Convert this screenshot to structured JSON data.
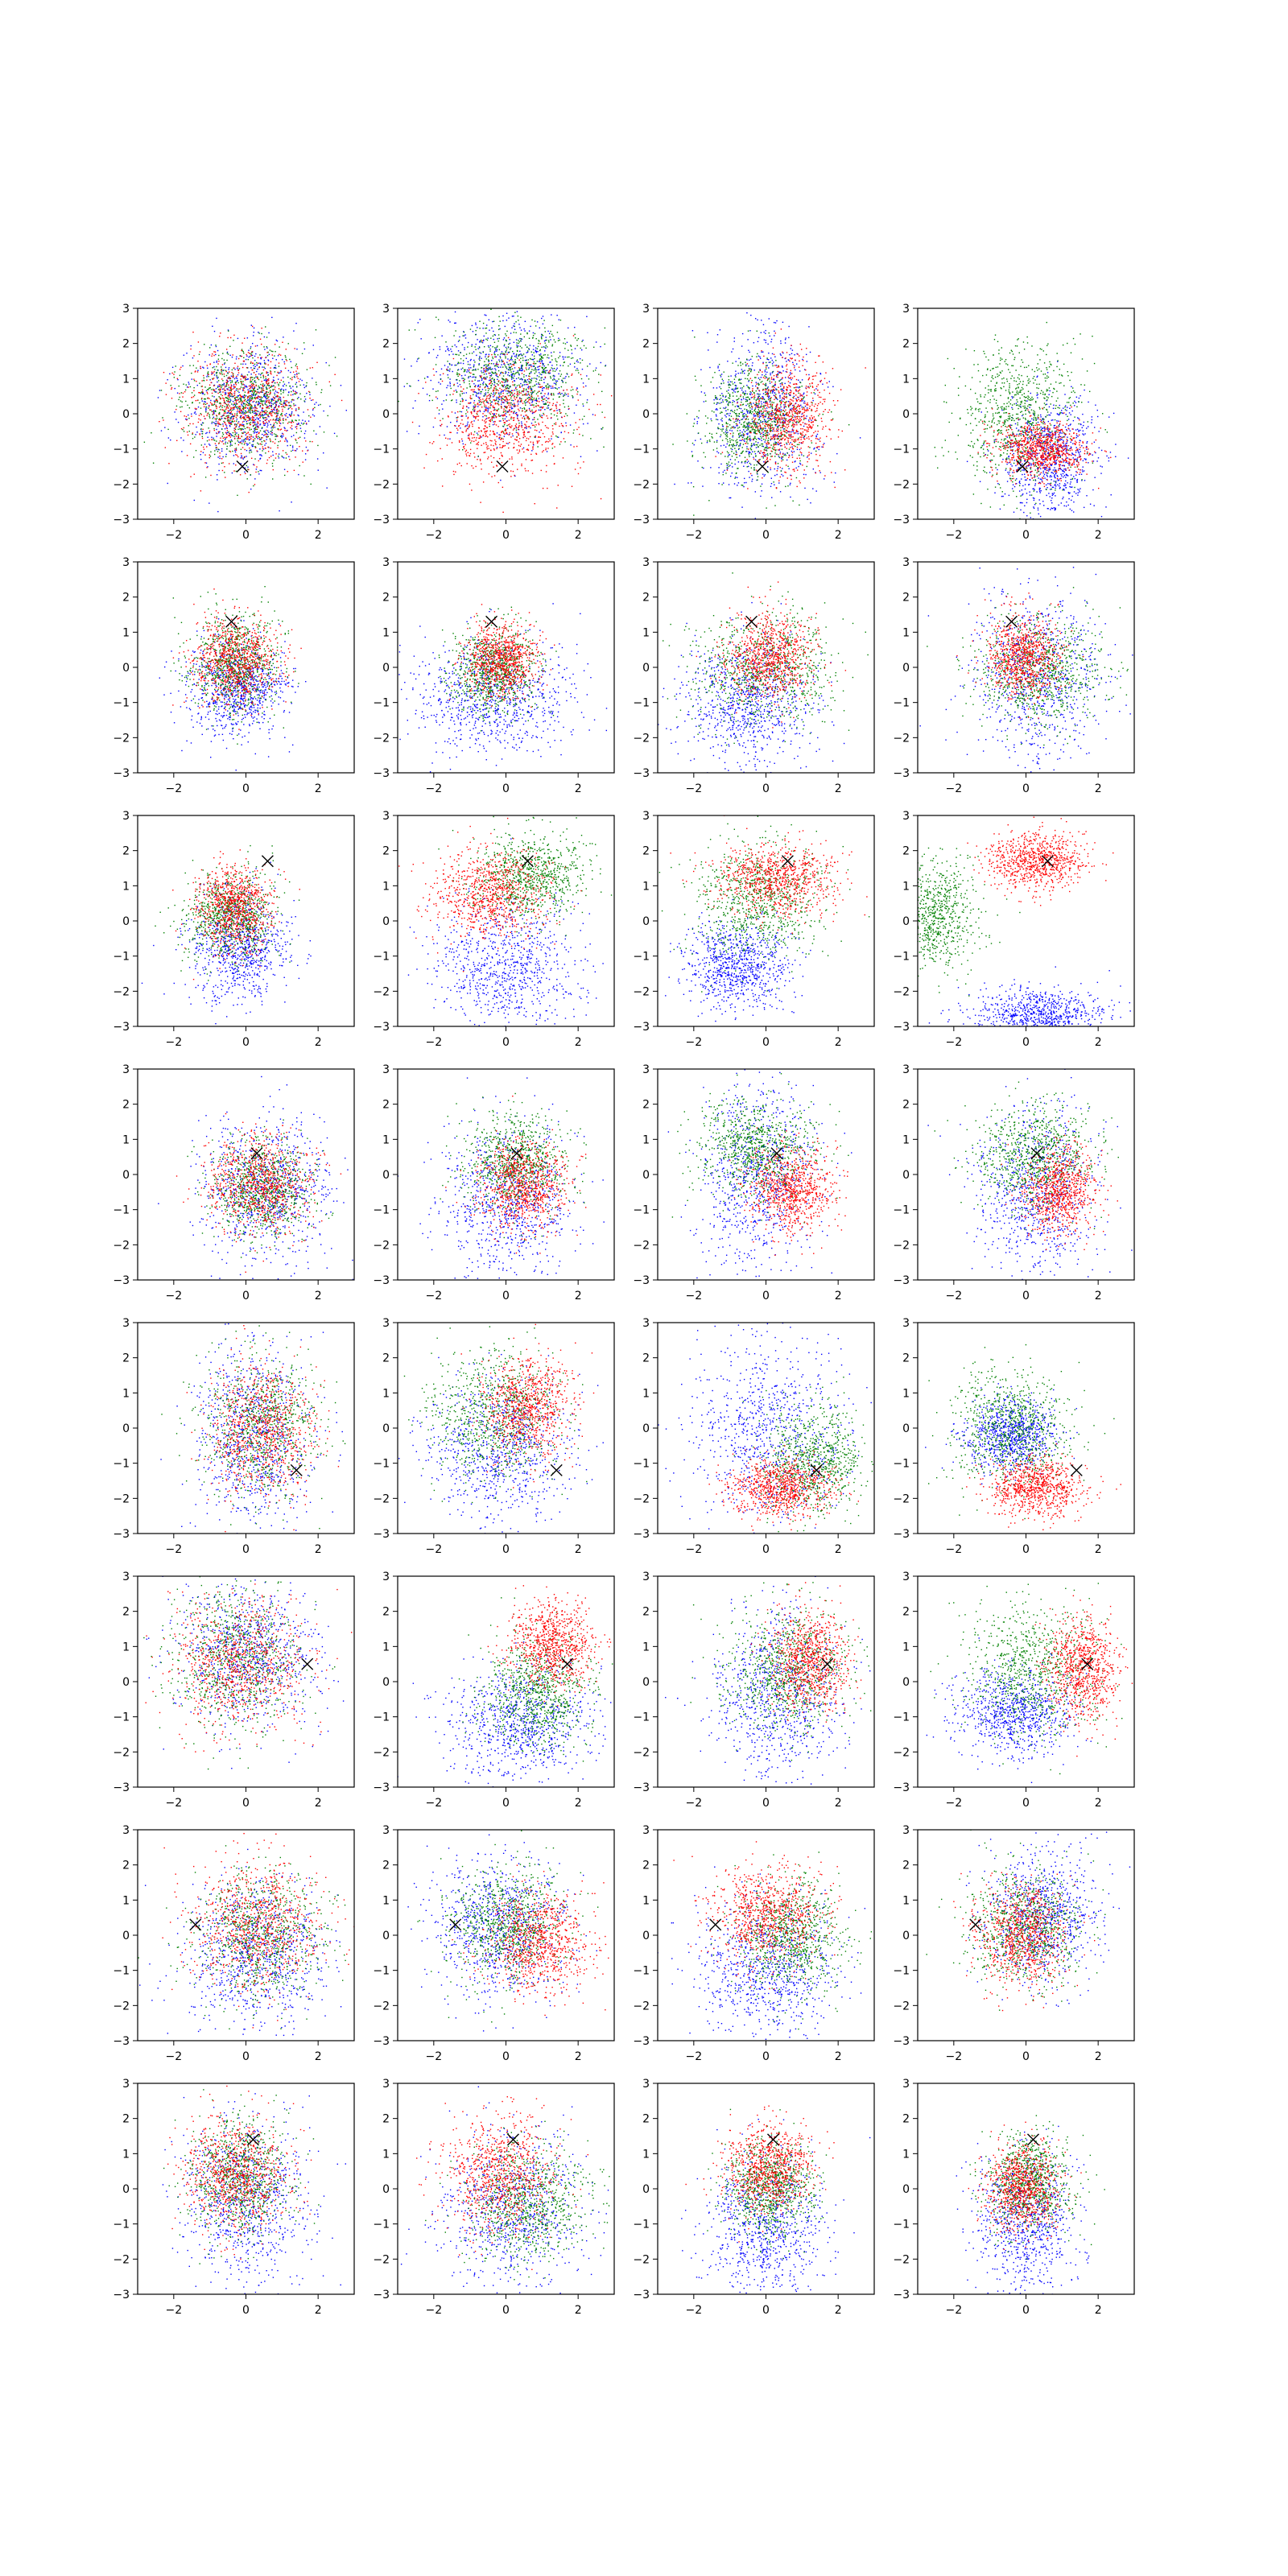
{
  "chart_data": {
    "type": "scatter",
    "layout": "grid of 8 rows x 4 columns of scatter subplots",
    "xlim": [
      -3,
      3
    ],
    "ylim": [
      -3,
      3
    ],
    "xticks": [
      -2,
      0,
      2
    ],
    "yticks": [
      -3,
      -2,
      -1,
      0,
      1,
      2,
      3
    ],
    "xtick_labels": [
      "−2",
      "0",
      "2"
    ],
    "ytick_labels": [
      "−3",
      "−2",
      "−1",
      "0",
      "1",
      "2",
      "3"
    ],
    "grid": false,
    "legend": "none",
    "title": "",
    "xlabel": "",
    "ylabel": "",
    "series_colors": [
      "#0000ff",
      "#008000",
      "#ff0000"
    ],
    "marker_query": "x",
    "query_points": [
      {
        "row": 0,
        "x": -0.1,
        "y": -1.5
      },
      {
        "row": 1,
        "x": -0.4,
        "y": 1.3
      },
      {
        "row": 2,
        "x": 0.6,
        "y": 1.7
      },
      {
        "row": 3,
        "x": 0.3,
        "y": 0.6
      },
      {
        "row": 4,
        "x": 1.4,
        "y": -1.2
      },
      {
        "row": 5,
        "x": 1.7,
        "y": 0.5
      },
      {
        "row": 6,
        "x": -1.4,
        "y": 0.3
      },
      {
        "row": 7,
        "x": 0.2,
        "y": 1.4
      }
    ],
    "panels": [
      [
        {
          "blue": {
            "cx": 0.1,
            "cy": 0.2,
            "sx": 0.9,
            "sy": 0.9
          },
          "green": {
            "cx": 0.0,
            "cy": 0.3,
            "sx": 0.9,
            "sy": 0.8
          },
          "red": {
            "cx": 0.0,
            "cy": 0.2,
            "sx": 0.9,
            "sy": 0.8
          }
        },
        {
          "blue": {
            "cx": 0.0,
            "cy": 1.0,
            "sx": 1.1,
            "sy": 0.9
          },
          "green": {
            "cx": 0.3,
            "cy": 1.1,
            "sx": 1.0,
            "sy": 0.8
          },
          "red": {
            "cx": 0.0,
            "cy": -0.2,
            "sx": 0.9,
            "sy": 0.8
          }
        },
        {
          "blue": {
            "cx": -0.1,
            "cy": 0.0,
            "sx": 0.8,
            "sy": 1.2
          },
          "green": {
            "cx": -0.3,
            "cy": -0.2,
            "sx": 0.7,
            "sy": 0.8
          },
          "red": {
            "cx": 0.6,
            "cy": -0.1,
            "sx": 0.6,
            "sy": 0.8
          }
        },
        {
          "blue": {
            "cx": 0.7,
            "cy": -1.2,
            "sx": 0.7,
            "sy": 0.9
          },
          "green": {
            "cx": -0.2,
            "cy": 0.0,
            "sx": 0.8,
            "sy": 1.0
          },
          "red": {
            "cx": 0.4,
            "cy": -1.0,
            "sx": 0.6,
            "sy": 0.4
          }
        }
      ],
      [
        {
          "blue": {
            "cx": -0.2,
            "cy": -0.6,
            "sx": 0.7,
            "sy": 0.7
          },
          "green": {
            "cx": -0.3,
            "cy": 0.1,
            "sx": 0.6,
            "sy": 0.7
          },
          "red": {
            "cx": -0.3,
            "cy": 0.2,
            "sx": 0.6,
            "sy": 0.6
          }
        },
        {
          "blue": {
            "cx": -0.4,
            "cy": -0.8,
            "sx": 1.1,
            "sy": 0.8
          },
          "green": {
            "cx": -0.3,
            "cy": -0.1,
            "sx": 0.6,
            "sy": 0.6
          },
          "red": {
            "cx": -0.1,
            "cy": 0.2,
            "sx": 0.5,
            "sy": 0.5
          }
        },
        {
          "blue": {
            "cx": -0.5,
            "cy": -1.0,
            "sx": 0.9,
            "sy": 0.9
          },
          "green": {
            "cx": -0.1,
            "cy": 0.0,
            "sx": 1.0,
            "sy": 0.8
          },
          "red": {
            "cx": 0.1,
            "cy": 0.3,
            "sx": 0.6,
            "sy": 0.6
          }
        },
        {
          "blue": {
            "cx": 0.3,
            "cy": -0.2,
            "sx": 0.9,
            "sy": 1.2
          },
          "green": {
            "cx": 0.4,
            "cy": -0.1,
            "sx": 0.9,
            "sy": 0.8
          },
          "red": {
            "cx": -0.1,
            "cy": 0.3,
            "sx": 0.5,
            "sy": 0.6
          }
        }
      ],
      [
        {
          "blue": {
            "cx": -0.2,
            "cy": -0.7,
            "sx": 0.7,
            "sy": 0.8
          },
          "green": {
            "cx": -0.4,
            "cy": 0.1,
            "sx": 0.6,
            "sy": 0.6
          },
          "red": {
            "cx": -0.3,
            "cy": 0.4,
            "sx": 0.5,
            "sy": 0.6
          }
        },
        {
          "blue": {
            "cx": 0.0,
            "cy": -1.3,
            "sx": 1.0,
            "sy": 0.9
          },
          "green": {
            "cx": 0.7,
            "cy": 1.3,
            "sx": 0.8,
            "sy": 0.6
          },
          "red": {
            "cx": -0.4,
            "cy": 0.8,
            "sx": 0.8,
            "sy": 0.6
          }
        },
        {
          "blue": {
            "cx": -0.8,
            "cy": -1.3,
            "sx": 0.7,
            "sy": 0.6
          },
          "green": {
            "cx": -0.2,
            "cy": 0.6,
            "sx": 0.9,
            "sy": 0.8
          },
          "red": {
            "cx": 0.3,
            "cy": 1.2,
            "sx": 0.8,
            "sy": 0.5
          }
        },
        {
          "blue": {
            "cx": 0.4,
            "cy": -2.7,
            "sx": 0.9,
            "sy": 0.4
          },
          "green": {
            "cx": -2.6,
            "cy": 0.2,
            "sx": 0.6,
            "sy": 0.8
          },
          "red": {
            "cx": 0.3,
            "cy": 1.7,
            "sx": 0.7,
            "sy": 0.4
          }
        }
      ],
      [
        {
          "blue": {
            "cx": 0.5,
            "cy": -0.4,
            "sx": 0.9,
            "sy": 1.0
          },
          "green": {
            "cx": 0.4,
            "cy": -0.4,
            "sx": 0.7,
            "sy": 0.7
          },
          "red": {
            "cx": 0.4,
            "cy": -0.3,
            "sx": 0.7,
            "sy": 0.7
          }
        },
        {
          "blue": {
            "cx": 0.0,
            "cy": -0.8,
            "sx": 0.9,
            "sy": 1.1
          },
          "green": {
            "cx": 0.3,
            "cy": 0.3,
            "sx": 0.7,
            "sy": 0.7
          },
          "red": {
            "cx": 0.5,
            "cy": -0.3,
            "sx": 0.6,
            "sy": 0.6
          }
        },
        {
          "blue": {
            "cx": -0.2,
            "cy": -0.1,
            "sx": 0.8,
            "sy": 1.3
          },
          "green": {
            "cx": -0.3,
            "cy": 0.7,
            "sx": 0.8,
            "sy": 0.7
          },
          "red": {
            "cx": 0.7,
            "cy": -0.4,
            "sx": 0.6,
            "sy": 0.6
          }
        },
        {
          "blue": {
            "cx": 0.3,
            "cy": -0.5,
            "sx": 0.8,
            "sy": 1.3
          },
          "green": {
            "cx": 0.2,
            "cy": 0.5,
            "sx": 0.8,
            "sy": 0.7
          },
          "red": {
            "cx": 0.9,
            "cy": -0.5,
            "sx": 0.5,
            "sy": 0.6
          }
        }
      ],
      [
        {
          "blue": {
            "cx": 0.2,
            "cy": -0.2,
            "sx": 0.8,
            "sy": 1.3
          },
          "green": {
            "cx": 0.4,
            "cy": 0.0,
            "sx": 0.8,
            "sy": 1.0
          },
          "red": {
            "cx": 0.4,
            "cy": 0.0,
            "sx": 0.7,
            "sy": 0.9
          }
        },
        {
          "blue": {
            "cx": -0.2,
            "cy": -0.6,
            "sx": 1.0,
            "sy": 1.0
          },
          "green": {
            "cx": -0.3,
            "cy": 0.4,
            "sx": 0.9,
            "sy": 0.9
          },
          "red": {
            "cx": 0.6,
            "cy": 0.6,
            "sx": 0.6,
            "sy": 0.7
          }
        },
        {
          "blue": {
            "cx": 0.0,
            "cy": 0.0,
            "sx": 1.1,
            "sy": 1.3
          },
          "green": {
            "cx": 1.3,
            "cy": -0.9,
            "sx": 0.7,
            "sy": 0.8
          },
          "red": {
            "cx": 0.4,
            "cy": -1.7,
            "sx": 0.7,
            "sy": 0.4
          }
        },
        {
          "blue": {
            "cx": -0.4,
            "cy": -0.2,
            "sx": 0.6,
            "sy": 0.5
          },
          "green": {
            "cx": -0.4,
            "cy": 0.0,
            "sx": 0.8,
            "sy": 0.8
          },
          "red": {
            "cx": 0.3,
            "cy": -1.7,
            "sx": 0.6,
            "sy": 0.4
          }
        }
      ],
      [
        {
          "blue": {
            "cx": 0.0,
            "cy": 0.7,
            "sx": 1.0,
            "sy": 1.0
          },
          "green": {
            "cx": -0.3,
            "cy": 0.6,
            "sx": 0.9,
            "sy": 1.0
          },
          "red": {
            "cx": -0.2,
            "cy": 0.5,
            "sx": 0.9,
            "sy": 0.9
          }
        },
        {
          "blue": {
            "cx": 0.4,
            "cy": -1.2,
            "sx": 1.0,
            "sy": 0.8
          },
          "green": {
            "cx": 0.9,
            "cy": -0.3,
            "sx": 0.7,
            "sy": 0.8
          },
          "red": {
            "cx": 1.3,
            "cy": 1.1,
            "sx": 0.6,
            "sy": 0.6
          }
        },
        {
          "blue": {
            "cx": 0.3,
            "cy": -0.4,
            "sx": 0.9,
            "sy": 1.2
          },
          "green": {
            "cx": 0.6,
            "cy": 0.3,
            "sx": 0.9,
            "sy": 0.9
          },
          "red": {
            "cx": 1.2,
            "cy": 0.6,
            "sx": 0.5,
            "sy": 0.7
          }
        },
        {
          "blue": {
            "cx": -0.3,
            "cy": -0.9,
            "sx": 0.8,
            "sy": 0.6
          },
          "green": {
            "cx": 0.2,
            "cy": 0.3,
            "sx": 0.9,
            "sy": 0.9
          },
          "red": {
            "cx": 1.6,
            "cy": 0.4,
            "sx": 0.5,
            "sy": 0.7
          }
        }
      ],
      [
        {
          "blue": {
            "cx": 0.3,
            "cy": -0.5,
            "sx": 1.0,
            "sy": 1.0
          },
          "green": {
            "cx": 0.4,
            "cy": 0.0,
            "sx": 0.9,
            "sy": 0.9
          },
          "red": {
            "cx": 0.3,
            "cy": 0.3,
            "sx": 0.9,
            "sy": 0.9
          }
        },
        {
          "blue": {
            "cx": -0.2,
            "cy": 0.2,
            "sx": 0.9,
            "sy": 1.0
          },
          "green": {
            "cx": 0.0,
            "cy": 0.3,
            "sx": 0.8,
            "sy": 0.8
          },
          "red": {
            "cx": 0.9,
            "cy": -0.2,
            "sx": 0.7,
            "sy": 0.7
          }
        },
        {
          "blue": {
            "cx": 0.0,
            "cy": -1.0,
            "sx": 1.0,
            "sy": 1.0
          },
          "green": {
            "cx": 0.7,
            "cy": 0.0,
            "sx": 0.7,
            "sy": 0.8
          },
          "red": {
            "cx": 0.0,
            "cy": 0.6,
            "sx": 0.8,
            "sy": 0.7
          }
        },
        {
          "blue": {
            "cx": 0.5,
            "cy": 0.6,
            "sx": 0.8,
            "sy": 0.9
          },
          "green": {
            "cx": 0.0,
            "cy": 0.2,
            "sx": 0.8,
            "sy": 0.8
          },
          "red": {
            "cx": -0.1,
            "cy": 0.0,
            "sx": 0.6,
            "sy": 0.7
          }
        }
      ],
      [
        {
          "blue": {
            "cx": 0.0,
            "cy": -0.3,
            "sx": 0.9,
            "sy": 1.1
          },
          "green": {
            "cx": -0.2,
            "cy": 0.3,
            "sx": 0.7,
            "sy": 0.8
          },
          "red": {
            "cx": -0.3,
            "cy": 0.4,
            "sx": 0.7,
            "sy": 0.8
          }
        },
        {
          "blue": {
            "cx": 0.2,
            "cy": -0.6,
            "sx": 1.0,
            "sy": 1.1
          },
          "green": {
            "cx": 0.6,
            "cy": -0.4,
            "sx": 0.8,
            "sy": 0.8
          },
          "red": {
            "cx": -0.2,
            "cy": 0.4,
            "sx": 0.8,
            "sy": 0.8
          }
        },
        {
          "blue": {
            "cx": 0.0,
            "cy": -1.1,
            "sx": 0.8,
            "sy": 1.0
          },
          "green": {
            "cx": 0.1,
            "cy": 0.0,
            "sx": 0.6,
            "sy": 0.7
          },
          "red": {
            "cx": 0.1,
            "cy": 0.6,
            "sx": 0.6,
            "sy": 0.6
          }
        },
        {
          "blue": {
            "cx": 0.0,
            "cy": -1.0,
            "sx": 0.7,
            "sy": 1.0
          },
          "green": {
            "cx": 0.1,
            "cy": 0.2,
            "sx": 0.6,
            "sy": 0.7
          },
          "red": {
            "cx": -0.1,
            "cy": 0.0,
            "sx": 0.5,
            "sy": 0.6
          }
        }
      ]
    ]
  }
}
